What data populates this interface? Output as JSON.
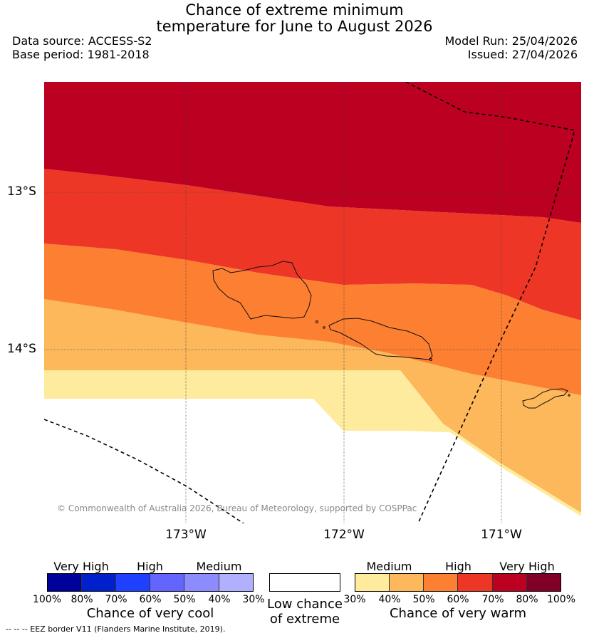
{
  "title": {
    "line1": "Chance of extreme minimum",
    "line2": "temperature for June to August 2026"
  },
  "meta": {
    "data_source": "Data source: ACCESS-S2",
    "base_period": "Base period: 1981-2018",
    "model_run": "Model Run: 25/04/2026",
    "issued": "Issued: 27/04/2026"
  },
  "map": {
    "lat_labels": [
      "13°S",
      "14°S"
    ],
    "lon_labels": [
      "173°W",
      "172°W",
      "171°W"
    ],
    "copyright": "© Commonwealth of Australia 2026, Bureau of Meteorology, supported by COSPPac",
    "colors": {
      "very_high_warm": "#bb0022",
      "high_warm_70": "#ee3626",
      "high_warm_60": "#fc7f32",
      "medium_warm_50": "#fcb85a",
      "medium_warm_40": "#feeb9e",
      "low": "#ffffff"
    }
  },
  "legend": {
    "cool": {
      "groups": [
        "Very High",
        "High",
        "Medium"
      ],
      "ticks": [
        "100%",
        "80%",
        "70%",
        "60%",
        "50%",
        "40%",
        "30%"
      ],
      "title": "Chance of very cool",
      "colors": [
        "#00009a",
        "#0020cc",
        "#2040ff",
        "#6464ff",
        "#8c8cff",
        "#b0b0ff"
      ]
    },
    "low": {
      "line1": "Low chance",
      "line2": "of extreme"
    },
    "warm": {
      "groups": [
        "Medium",
        "High",
        "Very High"
      ],
      "ticks": [
        "30%",
        "40%",
        "50%",
        "60%",
        "70%",
        "80%",
        "100%"
      ],
      "title": "Chance of very warm",
      "colors": [
        "#feeb9e",
        "#fcb85a",
        "#fc7f32",
        "#ee3626",
        "#bb0022",
        "#800028"
      ]
    }
  },
  "footnote": "-- -- -- EEZ border V11 (Flanders Marine Institute, 2019)."
}
